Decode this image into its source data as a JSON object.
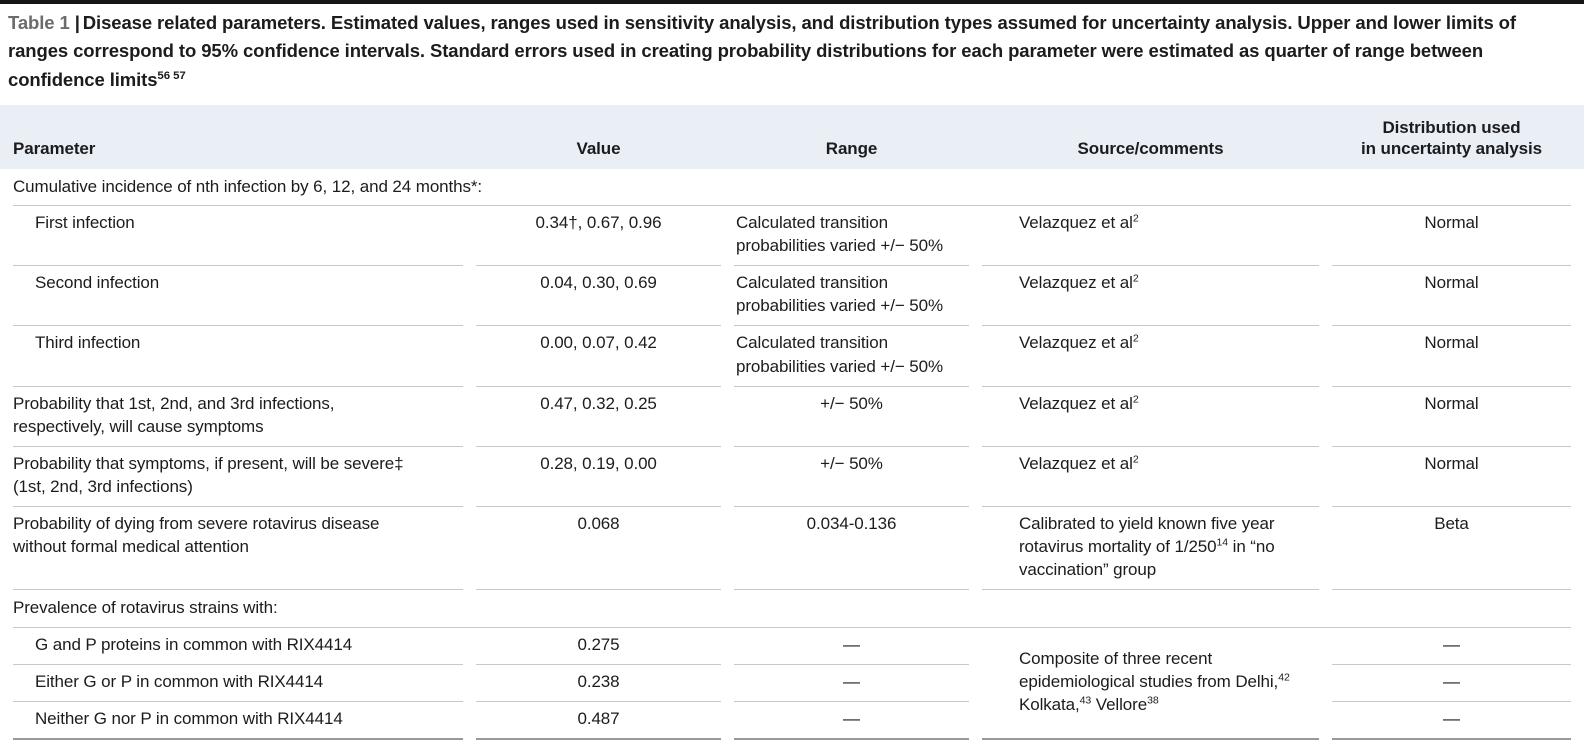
{
  "colors": {
    "header_background": "#e9eff5",
    "title_label": "#6b6c6e",
    "rule": "#c6c8ca",
    "strong_rule": "#98999b",
    "top_bar": "#151515",
    "text": "#1c1c1e"
  },
  "title": {
    "label": "Table 1",
    "separator": "|",
    "text": "Disease related parameters. Estimated values, ranges used in sensitivity analysis, and distribution types assumed for uncertainty analysis. Upper and lower limits of ranges correspond to 95% confidence intervals. Standard errors used in creating probability distributions for each parameter were estimated as quarter of range between confidence limits^{56 57}"
  },
  "table": {
    "columns": [
      {
        "label": "Parameter"
      },
      {
        "label": "Value"
      },
      {
        "label": "Range"
      },
      {
        "label": "Source/comments"
      },
      {
        "label": "Distribution used\nin uncertainty analysis"
      }
    ],
    "rows": [
      {
        "type": "section",
        "cells": [
          {
            "text": "Cumulative incidence of nth infection by 6, 12, and 24 months*:",
            "colspan": 5
          }
        ]
      },
      {
        "type": "data",
        "cells": [
          {
            "col": 0,
            "text": "First infection",
            "indent": true
          },
          {
            "col": 1,
            "text": "0.34†, 0.67, 0.96"
          },
          {
            "col": 2,
            "text": "Calculated transition probabilities varied +/− 50%",
            "align": "left"
          },
          {
            "col": 3,
            "text": "Velazquez et al^{2}"
          },
          {
            "col": 4,
            "text": "Normal"
          }
        ]
      },
      {
        "type": "data",
        "cells": [
          {
            "col": 0,
            "text": "Second infection",
            "indent": true
          },
          {
            "col": 1,
            "text": "0.04, 0.30, 0.69"
          },
          {
            "col": 2,
            "text": "Calculated transition probabilities varied +/− 50%",
            "align": "left"
          },
          {
            "col": 3,
            "text": "Velazquez et al^{2}"
          },
          {
            "col": 4,
            "text": "Normal"
          }
        ]
      },
      {
        "type": "data",
        "cells": [
          {
            "col": 0,
            "text": "Third infection",
            "indent": true
          },
          {
            "col": 1,
            "text": "0.00, 0.07, 0.42"
          },
          {
            "col": 2,
            "text": "Calculated transition probabilities varied +/− 50%",
            "align": "left"
          },
          {
            "col": 3,
            "text": "Velazquez et al^{2}"
          },
          {
            "col": 4,
            "text": "Normal"
          }
        ]
      },
      {
        "type": "data",
        "cells": [
          {
            "col": 0,
            "text": "Probability that 1st, 2nd, and 3rd infections, respectively, will cause symptoms"
          },
          {
            "col": 1,
            "text": "0.47, 0.32, 0.25"
          },
          {
            "col": 2,
            "text": "+/− 50%"
          },
          {
            "col": 3,
            "text": "Velazquez et al^{2}"
          },
          {
            "col": 4,
            "text": "Normal"
          }
        ]
      },
      {
        "type": "data",
        "cells": [
          {
            "col": 0,
            "text": "Probability that symptoms, if present, will be severe‡ (1st, 2nd, 3rd infections)"
          },
          {
            "col": 1,
            "text": "0.28, 0.19, 0.00"
          },
          {
            "col": 2,
            "text": "+/− 50%"
          },
          {
            "col": 3,
            "text": "Velazquez et al^{2}"
          },
          {
            "col": 4,
            "text": "Normal"
          }
        ]
      },
      {
        "type": "data",
        "cells": [
          {
            "col": 0,
            "text": "Probability of dying from severe rotavirus disease without formal medical attention"
          },
          {
            "col": 1,
            "text": "0.068"
          },
          {
            "col": 2,
            "text": "0.034-0.136"
          },
          {
            "col": 3,
            "text": "Calibrated to yield known five year rotavirus mortality of 1/250^{14} in “no vaccination” group"
          },
          {
            "col": 4,
            "text": "Beta"
          }
        ]
      },
      {
        "type": "section",
        "cells": [
          {
            "text": "Prevalence of rotavirus strains with:",
            "colspan": 5
          }
        ]
      },
      {
        "type": "data",
        "cells": [
          {
            "col": 0,
            "text": "G and P proteins in common with RIX4414",
            "indent": true
          },
          {
            "col": 1,
            "text": "0.275"
          },
          {
            "col": 2,
            "text": "—"
          },
          {
            "col": 3,
            "text": "Composite of three recent epidemiological studies from Delhi,^{42} Kolkata,^{43} Vellore^{38}",
            "rowspan": 3,
            "valign": "middle",
            "bottom": true
          },
          {
            "col": 4,
            "text": "—"
          }
        ]
      },
      {
        "type": "data",
        "cells": [
          {
            "col": 0,
            "text": "Either G or P in common with RIX4414",
            "indent": true
          },
          {
            "col": 1,
            "text": "0.238"
          },
          {
            "col": 2,
            "text": "—"
          },
          {
            "col": 4,
            "text": "—"
          }
        ]
      },
      {
        "type": "data",
        "cells": [
          {
            "col": 0,
            "text": "Neither G nor P in common with RIX4414",
            "indent": true
          },
          {
            "col": 1,
            "text": "0.487"
          },
          {
            "col": 2,
            "text": "—"
          },
          {
            "col": 4,
            "text": "—"
          }
        ]
      }
    ]
  }
}
